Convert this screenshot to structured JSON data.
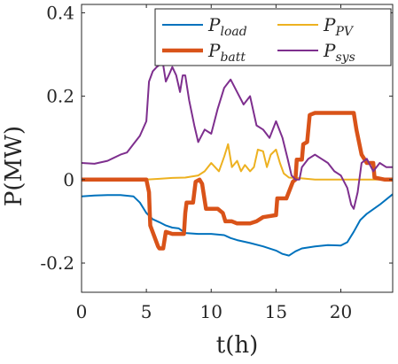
{
  "chart_data": {
    "type": "line",
    "xlabel": "t(h)",
    "ylabel": "P(MW)",
    "xlim": [
      0,
      24
    ],
    "ylim": [
      -0.27,
      0.42
    ],
    "xticks": [
      0,
      5,
      10,
      15,
      20
    ],
    "yticks": [
      -0.2,
      0,
      0.2,
      0.4
    ],
    "xtick_labels": [
      "0",
      "5",
      "10",
      "15",
      "20"
    ],
    "ytick_labels": [
      "-0.2",
      "0",
      "0.2",
      "0.4"
    ],
    "grid": false,
    "legend_location": "top-right",
    "series": [
      {
        "name": "P_load",
        "label_main": "P",
        "label_sub": "load",
        "color": "#0072BD",
        "width": 2,
        "x": [
          0,
          1,
          2,
          3,
          4,
          4.5,
          5,
          5.5,
          6,
          6.5,
          7,
          7.5,
          8,
          9,
          10,
          11,
          11.5,
          12,
          13,
          14,
          15,
          15.5,
          16,
          16.5,
          17,
          18,
          19,
          20,
          20.5,
          21,
          21.5,
          22,
          23,
          24
        ],
        "y": [
          -0.04,
          -0.038,
          -0.037,
          -0.037,
          -0.04,
          -0.055,
          -0.08,
          -0.095,
          -0.102,
          -0.11,
          -0.115,
          -0.117,
          -0.128,
          -0.13,
          -0.13,
          -0.133,
          -0.14,
          -0.145,
          -0.152,
          -0.16,
          -0.17,
          -0.178,
          -0.182,
          -0.172,
          -0.165,
          -0.16,
          -0.157,
          -0.158,
          -0.15,
          -0.125,
          -0.097,
          -0.082,
          -0.06,
          -0.035
        ]
      },
      {
        "name": "P_PV",
        "label_main": "P",
        "label_sub": "PV",
        "color": "#EDB120",
        "width": 2,
        "x": [
          0,
          3,
          5,
          6,
          7,
          8,
          9,
          9.5,
          10,
          10.3,
          10.6,
          11,
          11.3,
          11.6,
          12,
          12.3,
          12.6,
          13,
          13.3,
          13.6,
          14,
          14.3,
          14.6,
          15,
          15.3,
          15.6,
          16,
          17,
          18,
          20,
          22,
          24
        ],
        "y": [
          0,
          0,
          0,
          0.002,
          0.004,
          0.005,
          0.01,
          0.02,
          0.04,
          0.03,
          0.02,
          0.055,
          0.085,
          0.03,
          0.045,
          0.02,
          0.035,
          0.02,
          0.03,
          0.072,
          0.068,
          0.03,
          0.06,
          0.072,
          0.04,
          0.015,
          0.005,
          0.003,
          0,
          0,
          0,
          0
        ]
      },
      {
        "name": "P_batt",
        "label_main": "P",
        "label_sub": "batt",
        "color": "#D95319",
        "width": 4.5,
        "x": [
          0,
          4.5,
          5.0,
          5.2,
          5.3,
          5.9,
          6.0,
          6.3,
          6.5,
          7.0,
          7.4,
          7.9,
          8.0,
          8.1,
          8.6,
          8.8,
          9.1,
          9.3,
          9.6,
          10.0,
          10.3,
          10.5,
          10.9,
          11.1,
          11.6,
          12.0,
          12.5,
          13.0,
          13.5,
          14.0,
          15.0,
          15.1,
          15.8,
          16.3,
          16.5,
          16.6,
          17.0,
          17.1,
          17.4,
          17.6,
          18.0,
          19.0,
          20.0,
          21.0,
          21.2,
          21.6,
          22.0,
          22.5,
          22.6,
          23.4,
          24
        ],
        "y": [
          0,
          0,
          0,
          -0.03,
          -0.11,
          -0.16,
          -0.165,
          -0.165,
          -0.125,
          -0.13,
          -0.13,
          -0.13,
          -0.08,
          -0.055,
          -0.055,
          -0.005,
          0,
          -0.01,
          -0.07,
          -0.07,
          -0.07,
          -0.07,
          -0.08,
          -0.1,
          -0.1,
          -0.105,
          -0.105,
          -0.105,
          -0.1,
          -0.09,
          -0.085,
          -0.045,
          -0.045,
          -0.005,
          0,
          0.048,
          0.048,
          0.085,
          0.09,
          0.155,
          0.16,
          0.16,
          0.16,
          0.16,
          0.12,
          0.06,
          0.04,
          0.04,
          0.005,
          0,
          0
        ]
      },
      {
        "name": "P_sys",
        "label_main": "P",
        "label_sub": "sys",
        "color": "#7E2F8E",
        "width": 2,
        "x": [
          0,
          1,
          2,
          3,
          3.5,
          4,
          4.5,
          5,
          5.2,
          5.5,
          5.8,
          6.0,
          6.3,
          6.5,
          6.8,
          7.0,
          7.3,
          7.6,
          7.8,
          8.0,
          8.3,
          8.7,
          9.0,
          9.5,
          10.0,
          10.5,
          11.0,
          11.5,
          12.0,
          12.5,
          13.0,
          13.5,
          14.0,
          14.5,
          15.0,
          15.5,
          15.9,
          16.2,
          16.5,
          16.8,
          17.0,
          17.5,
          18.0,
          18.5,
          19.0,
          19.5,
          20.0,
          20.5,
          20.8,
          21.0,
          21.3,
          21.6,
          22.0,
          22.5,
          23.0,
          23.5,
          24
        ],
        "y": [
          0.04,
          0.038,
          0.045,
          0.06,
          0.065,
          0.085,
          0.105,
          0.14,
          0.235,
          0.26,
          0.27,
          0.275,
          0.275,
          0.235,
          0.255,
          0.27,
          0.25,
          0.21,
          0.25,
          0.25,
          0.19,
          0.13,
          0.09,
          0.12,
          0.11,
          0.17,
          0.22,
          0.24,
          0.21,
          0.18,
          0.2,
          0.13,
          0.12,
          0.1,
          0.14,
          0.1,
          0.05,
          0.01,
          0,
          0,
          0.03,
          0.05,
          0.06,
          0.05,
          0.04,
          0.02,
          0.01,
          -0.02,
          -0.06,
          -0.07,
          -0.03,
          0.04,
          0.05,
          0.02,
          0.04,
          0.03,
          0.03
        ]
      }
    ]
  }
}
